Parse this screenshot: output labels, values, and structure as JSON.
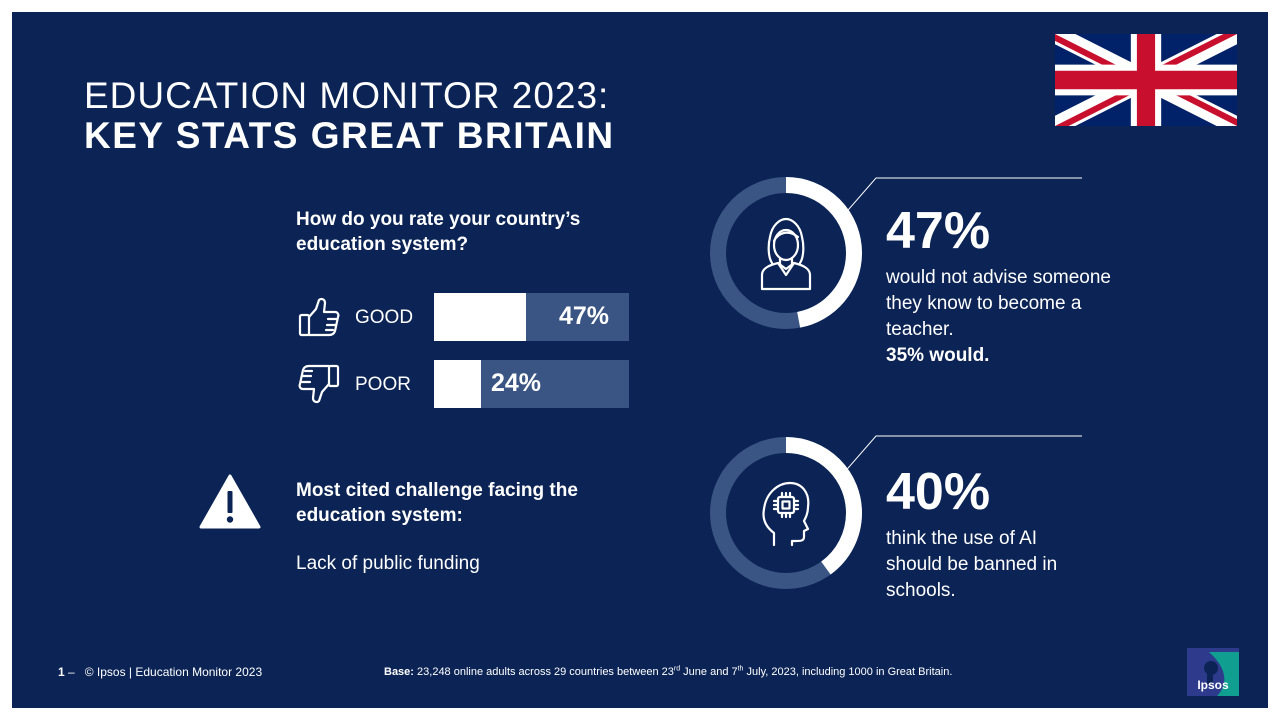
{
  "title": {
    "line1": "EDUCATION MONITOR 2023:",
    "line2": "KEY STATS GREAT BRITAIN"
  },
  "rating": {
    "question": "How do you rate your country’s education system?",
    "rows": [
      {
        "label": "GOOD",
        "value_text": "47%",
        "value": 47,
        "icon": "thumbs-up-icon"
      },
      {
        "label": "POOR",
        "value_text": "24%",
        "value": 24,
        "icon": "thumbs-down-icon"
      }
    ]
  },
  "challenge": {
    "title": "Most cited challenge facing the education system:",
    "answer": "Lack of public funding",
    "icon": "warning-icon"
  },
  "stats": [
    {
      "value_text": "47%",
      "value": 47,
      "text": "would not advise someone they know to become a teacher.",
      "strong": "35% would.",
      "icon": "teacher-icon"
    },
    {
      "value_text": "40%",
      "value": 40,
      "text": "think the use of AI should be banned in schools.",
      "icon": "ai-head-icon"
    }
  ],
  "footer": {
    "page_number": "1",
    "dash": "–",
    "copyright": "© Ipsos | Education Monitor 2023",
    "base_label": "Base:",
    "base_pre": "23,248 online adults across 29 countries between 23",
    "sup1": "rd",
    "base_mid": "June and 7",
    "sup2": "th",
    "base_post": "July, 2023, including 1000 in Great Britain."
  },
  "logo_text": "Ipsos",
  "colors": {
    "background": "#0b2455",
    "track": "#3a5584",
    "fill": "#ffffff"
  }
}
